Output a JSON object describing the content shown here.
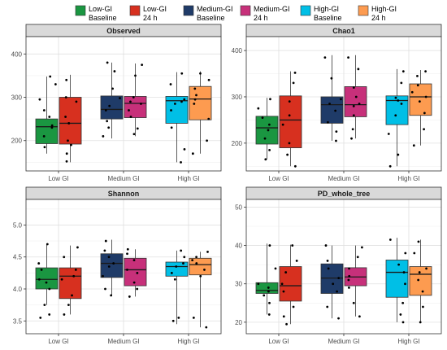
{
  "legend": {
    "items": [
      {
        "line1": "Low-GI",
        "line2": "Baseline",
        "color": "#1a9641"
      },
      {
        "line1": "Low-GI",
        "line2": "24 h",
        "color": "#d7301f"
      },
      {
        "line1": "Medium-GI",
        "line2": "Baseline",
        "color": "#1f3b68"
      },
      {
        "line1": "Medium-GI",
        "line2": "24 h",
        "color": "#c7307a"
      },
      {
        "line1": "High-GI",
        "line2": "Baseline",
        "color": "#00bfe6"
      },
      {
        "line1": "High-GI",
        "line2": "24 h",
        "color": "#fd9b50"
      }
    ]
  },
  "chart_data": [
    {
      "type": "box",
      "title": "Observed",
      "categories": [
        "Low GI",
        "Medium GI",
        "High GI"
      ],
      "ylim": [
        130,
        440
      ],
      "yticks": [
        200,
        300,
        400
      ],
      "grid": true,
      "boxes": [
        {
          "group": 0,
          "series": 0,
          "min": 170,
          "q1": 193,
          "median": 232,
          "q3": 250,
          "max": 348,
          "points": [
            185,
            210,
            230,
            235,
            255,
            270,
            295,
            330,
            348
          ]
        },
        {
          "group": 0,
          "series": 1,
          "min": 150,
          "q1": 192,
          "median": 240,
          "q3": 300,
          "max": 352,
          "points": [
            152,
            170,
            190,
            200,
            240,
            255,
            290,
            300,
            340
          ]
        },
        {
          "group": 1,
          "series": 0,
          "min": 205,
          "q1": 250,
          "median": 272,
          "q3": 303,
          "max": 380,
          "points": [
            210,
            230,
            245,
            270,
            280,
            298,
            320,
            360,
            380
          ]
        },
        {
          "group": 1,
          "series": 1,
          "min": 210,
          "q1": 253,
          "median": 286,
          "q3": 302,
          "max": 378,
          "points": [
            215,
            228,
            255,
            270,
            285,
            290,
            300,
            350,
            375
          ]
        },
        {
          "group": 2,
          "series": 0,
          "min": 150,
          "q1": 240,
          "median": 292,
          "q3": 302,
          "max": 358,
          "points": [
            150,
            180,
            230,
            270,
            285,
            290,
            295,
            330,
            355
          ]
        },
        {
          "group": 2,
          "series": 1,
          "min": 170,
          "q1": 248,
          "median": 296,
          "q3": 325,
          "max": 360,
          "points": [
            170,
            200,
            250,
            285,
            295,
            305,
            320,
            340,
            355
          ]
        }
      ]
    },
    {
      "type": "box",
      "title": "Chao1",
      "categories": [
        "Low GI",
        "Medium GI",
        "High GI"
      ],
      "ylim": [
        140,
        430
      ],
      "yticks": [
        200,
        300,
        400
      ],
      "grid": true,
      "boxes": [
        {
          "group": 0,
          "series": 0,
          "min": 165,
          "q1": 198,
          "median": 233,
          "q3": 258,
          "max": 298,
          "points": [
            165,
            185,
            210,
            228,
            240,
            255,
            275,
            295
          ]
        },
        {
          "group": 0,
          "series": 1,
          "min": 150,
          "q1": 190,
          "median": 250,
          "q3": 302,
          "max": 355,
          "points": [
            150,
            175,
            200,
            240,
            260,
            290,
            330,
            352
          ]
        },
        {
          "group": 1,
          "series": 0,
          "min": 205,
          "q1": 243,
          "median": 283,
          "q3": 300,
          "max": 390,
          "points": [
            205,
            225,
            245,
            270,
            285,
            295,
            340,
            385
          ]
        },
        {
          "group": 1,
          "series": 1,
          "min": 210,
          "q1": 257,
          "median": 283,
          "q3": 322,
          "max": 390,
          "points": [
            210,
            230,
            260,
            280,
            285,
            300,
            320,
            360,
            385
          ]
        },
        {
          "group": 2,
          "series": 0,
          "min": 150,
          "q1": 240,
          "median": 292,
          "q3": 302,
          "max": 360,
          "points": [
            150,
            175,
            220,
            260,
            285,
            292,
            298,
            330,
            355
          ]
        },
        {
          "group": 2,
          "series": 1,
          "min": 195,
          "q1": 260,
          "median": 300,
          "q3": 328,
          "max": 358,
          "points": [
            195,
            230,
            265,
            290,
            300,
            310,
            325,
            345,
            355
          ]
        }
      ]
    },
    {
      "type": "box",
      "title": "Shannon",
      "categories": [
        "Low GI",
        "Medium GI",
        "High GI"
      ],
      "ylim": [
        3.3,
        5.4
      ],
      "yticks": [
        3.5,
        4.0,
        4.5,
        5.0
      ],
      "grid": true,
      "boxes": [
        {
          "group": 0,
          "series": 0,
          "min": 3.75,
          "q1": 4.0,
          "median": 4.15,
          "q3": 4.33,
          "max": 4.7,
          "points": [
            3.55,
            3.6,
            3.75,
            4.0,
            4.1,
            4.15,
            4.3,
            4.4,
            4.7
          ]
        },
        {
          "group": 0,
          "series": 1,
          "min": 3.6,
          "q1": 3.85,
          "median": 4.2,
          "q3": 4.33,
          "max": 4.68,
          "points": [
            3.6,
            3.75,
            3.9,
            4.15,
            4.2,
            4.3,
            4.5,
            4.65
          ]
        },
        {
          "group": 1,
          "series": 0,
          "min": 3.9,
          "q1": 4.18,
          "median": 4.4,
          "q3": 4.55,
          "max": 4.77,
          "points": [
            3.9,
            4.0,
            4.2,
            4.35,
            4.4,
            4.5,
            4.6,
            4.75
          ]
        },
        {
          "group": 1,
          "series": 1,
          "min": 3.88,
          "q1": 4.05,
          "median": 4.3,
          "q3": 4.48,
          "max": 4.62,
          "points": [
            3.88,
            4.0,
            4.1,
            4.25,
            4.3,
            4.45,
            4.55,
            4.62
          ]
        },
        {
          "group": 2,
          "series": 0,
          "min": 3.45,
          "q1": 4.2,
          "median": 4.35,
          "q3": 4.42,
          "max": 4.6,
          "points": [
            3.5,
            3.55,
            4.15,
            4.25,
            4.35,
            4.4,
            4.5,
            4.6
          ]
        },
        {
          "group": 2,
          "series": 1,
          "min": 3.4,
          "q1": 4.22,
          "median": 4.38,
          "q3": 4.48,
          "max": 4.58,
          "points": [
            3.4,
            3.55,
            4.2,
            4.3,
            4.4,
            4.45,
            4.5,
            4.58
          ]
        }
      ]
    },
    {
      "type": "box",
      "title": "PD_whole_tree",
      "categories": [
        "Low GI",
        "Medium GI",
        "High GI"
      ],
      "ylim": [
        17,
        52
      ],
      "yticks": [
        20,
        30,
        40,
        50
      ],
      "grid": true,
      "boxes": [
        {
          "group": 0,
          "series": 0,
          "min": 22,
          "q1": 27.5,
          "median": 28.3,
          "q3": 30.3,
          "max": 40.5,
          "points": [
            22,
            25,
            27,
            28,
            29,
            30,
            34,
            40
          ]
        },
        {
          "group": 0,
          "series": 1,
          "min": 19.5,
          "q1": 25.5,
          "median": 29.5,
          "q3": 34.5,
          "max": 40.2,
          "points": [
            19.5,
            21.5,
            24,
            28,
            30,
            33,
            36,
            40
          ]
        },
        {
          "group": 1,
          "series": 0,
          "min": 21,
          "q1": 27.5,
          "median": 31.5,
          "q3": 35.2,
          "max": 40,
          "points": [
            21,
            24,
            28,
            30,
            31.5,
            34,
            36,
            40
          ]
        },
        {
          "group": 1,
          "series": 1,
          "min": 21.5,
          "q1": 29.5,
          "median": 31.8,
          "q3": 34.2,
          "max": 40,
          "points": [
            21.5,
            25,
            29,
            31,
            32,
            34,
            37,
            39.5
          ]
        },
        {
          "group": 2,
          "series": 0,
          "min": 20,
          "q1": 26.5,
          "median": 33,
          "q3": 36.2,
          "max": 42,
          "points": [
            20,
            22,
            25,
            30,
            33,
            35,
            38,
            41.5
          ]
        },
        {
          "group": 2,
          "series": 1,
          "min": 20,
          "q1": 27,
          "median": 32.5,
          "q3": 34.5,
          "max": 41.5,
          "points": [
            20,
            24,
            28,
            31,
            33,
            34,
            38,
            41
          ]
        }
      ]
    }
  ]
}
